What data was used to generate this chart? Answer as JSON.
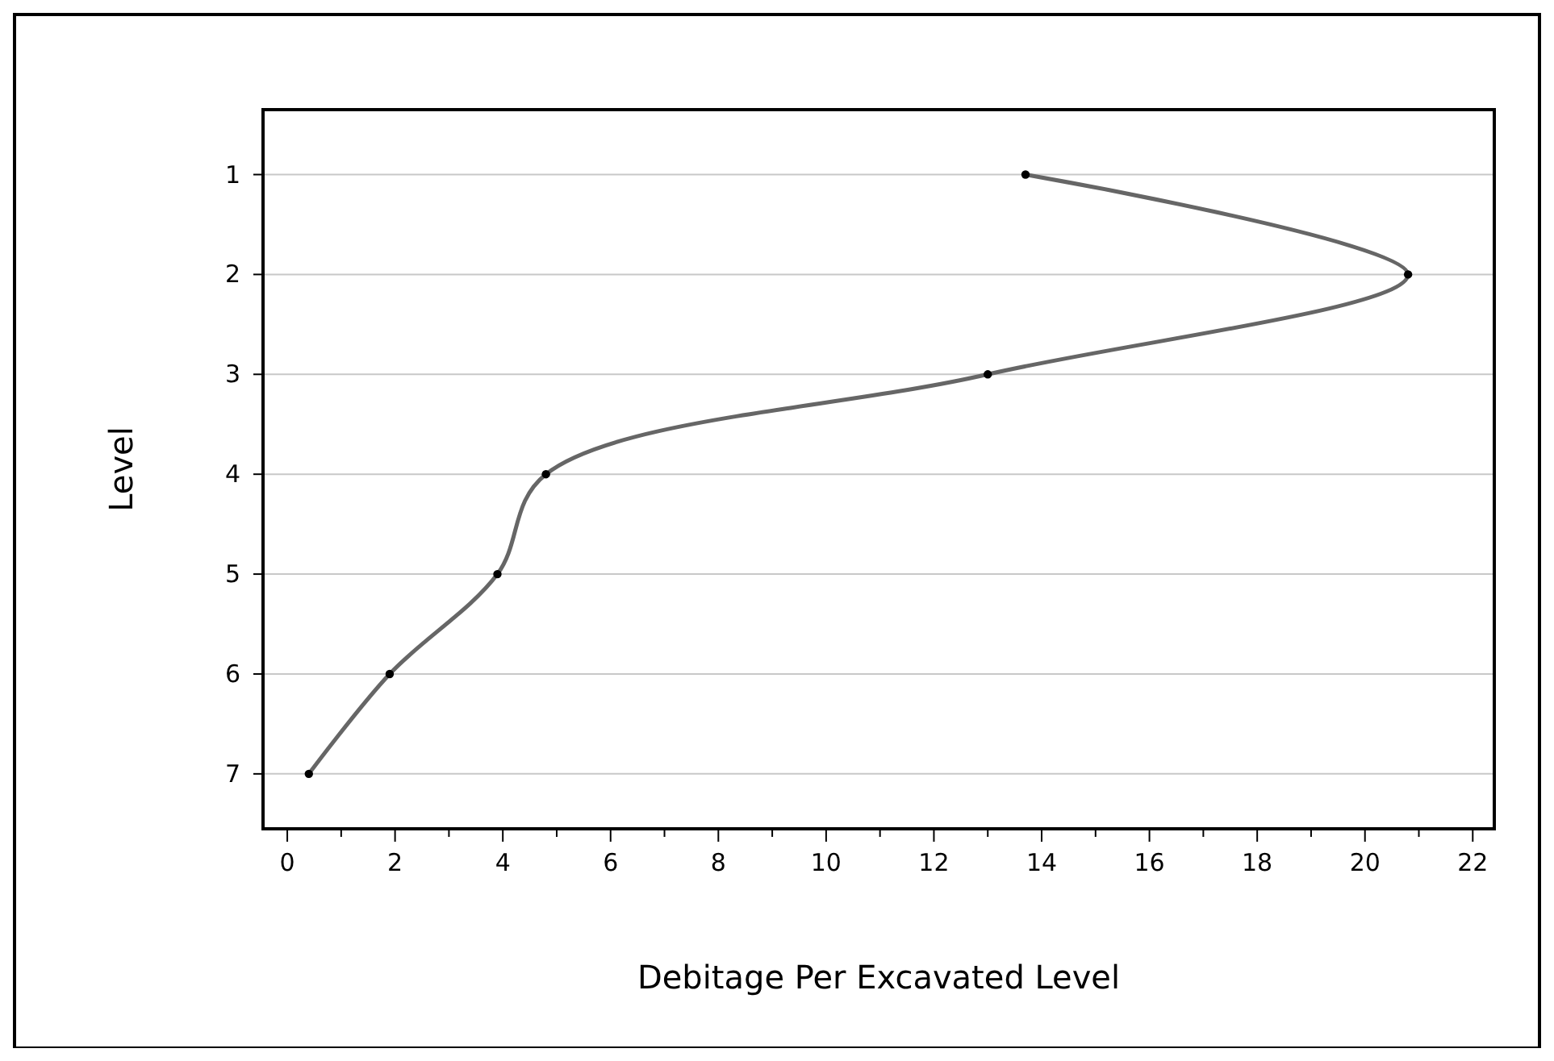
{
  "chart_data": {
    "type": "line",
    "xlabel": "Debitage Per Excavated Level",
    "ylabel": "Level",
    "series": [
      {
        "color": "#666666",
        "x": [
          13.7,
          20.8,
          13,
          4.8,
          3.9,
          1.9,
          0.4
        ],
        "values": [
          1,
          2,
          3,
          4,
          5,
          6,
          7
        ]
      }
    ],
    "xlim": [
      -0.45,
      22.4
    ],
    "ylim": [
      7.55,
      0.35
    ],
    "xticks": [
      0,
      {
        "value": 1,
        "label": null
      },
      2,
      {
        "value": 3,
        "label": null
      },
      4,
      {
        "value": 5,
        "label": null
      },
      6,
      {
        "value": 7,
        "label": null
      },
      8,
      {
        "value": 9,
        "label": null
      },
      10,
      {
        "value": 11,
        "label": null
      },
      12,
      {
        "value": 13,
        "label": null
      },
      14,
      {
        "value": 15,
        "label": null
      },
      16,
      {
        "value": 17,
        "label": null
      },
      18,
      {
        "value": 19,
        "label": null
      },
      20,
      {
        "value": 21,
        "label": null
      },
      22
    ],
    "yticks": [
      1,
      2,
      3,
      4,
      5,
      6,
      7
    ],
    "grid": "y",
    "marker": "circle",
    "line_style": "solid"
  }
}
